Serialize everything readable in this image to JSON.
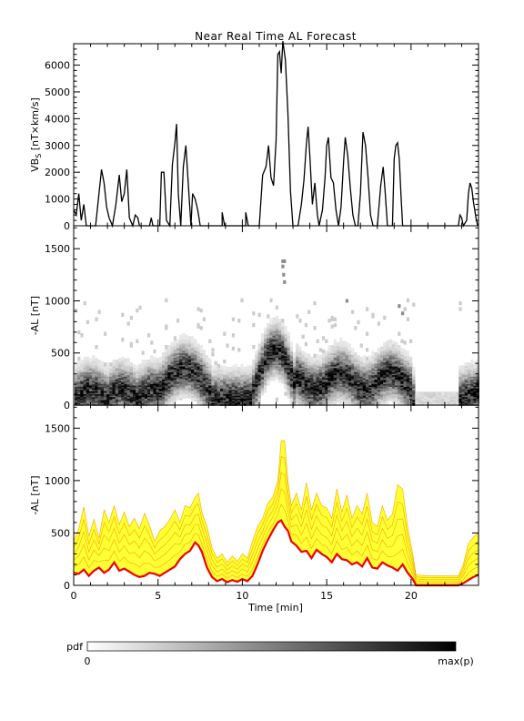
{
  "chart_data": {
    "title": "Near Real Time AL Forecast",
    "xlabel": "Time [min]",
    "xlim": [
      0,
      24
    ],
    "x_ticks": [
      0,
      5,
      10,
      15,
      20
    ],
    "panels": [
      {
        "type": "line",
        "ylabel": "VBs [nT×km/s]",
        "ylabel_main": "VB",
        "ylabel_sub": "S",
        "ylabel_rest": " [nT×km/s]",
        "ylim": [
          0,
          6800
        ],
        "y_ticks": [
          0,
          1000,
          2000,
          3000,
          4000,
          5000,
          6000
        ],
        "series": [
          {
            "color": "#000000",
            "points": [
              [
                0.0,
                600
              ],
              [
                0.15,
                400
              ],
              [
                0.3,
                1200
              ],
              [
                0.45,
                200
              ],
              [
                0.6,
                800
              ],
              [
                0.75,
                0
              ],
              [
                1.3,
                0
              ],
              [
                1.5,
                1200
              ],
              [
                1.65,
                2100
              ],
              [
                1.8,
                1600
              ],
              [
                1.95,
                700
              ],
              [
                2.1,
                300
              ],
              [
                2.3,
                0
              ],
              [
                2.5,
                800
              ],
              [
                2.7,
                1900
              ],
              [
                2.85,
                900
              ],
              [
                3.0,
                1200
              ],
              [
                3.15,
                2100
              ],
              [
                3.3,
                300
              ],
              [
                3.5,
                0
              ],
              [
                3.65,
                400
              ],
              [
                3.8,
                300
              ],
              [
                3.9,
                0
              ],
              [
                4.5,
                0
              ],
              [
                4.6,
                300
              ],
              [
                4.7,
                0
              ],
              [
                5.1,
                0
              ],
              [
                5.2,
                2000
              ],
              [
                5.35,
                2000
              ],
              [
                5.5,
                200
              ],
              [
                5.7,
                0
              ],
              [
                5.85,
                2300
              ],
              [
                6.0,
                3100
              ],
              [
                6.1,
                3800
              ],
              [
                6.2,
                1200
              ],
              [
                6.35,
                0
              ],
              [
                6.5,
                2200
              ],
              [
                6.65,
                3000
              ],
              [
                6.8,
                1500
              ],
              [
                6.95,
                0
              ],
              [
                7.05,
                1200
              ],
              [
                7.2,
                1000
              ],
              [
                7.35,
                600
              ],
              [
                7.5,
                0
              ],
              [
                8.8,
                0
              ],
              [
                8.8,
                500
              ],
              [
                8.95,
                0
              ],
              [
                10.2,
                0
              ],
              [
                10.2,
                500
              ],
              [
                10.35,
                0
              ],
              [
                11.0,
                0
              ],
              [
                11.2,
                1900
              ],
              [
                11.4,
                2200
              ],
              [
                11.55,
                3000
              ],
              [
                11.7,
                1800
              ],
              [
                11.85,
                1500
              ],
              [
                12.0,
                3200
              ],
              [
                12.1,
                6400
              ],
              [
                12.2,
                6500
              ],
              [
                12.3,
                5700
              ],
              [
                12.4,
                6900
              ],
              [
                12.55,
                6200
              ],
              [
                12.7,
                4200
              ],
              [
                12.85,
                1300
              ],
              [
                13.0,
                0
              ],
              [
                13.3,
                0
              ],
              [
                13.5,
                800
              ],
              [
                13.65,
                1700
              ],
              [
                13.8,
                3100
              ],
              [
                13.9,
                3700
              ],
              [
                14.0,
                2600
              ],
              [
                14.15,
                800
              ],
              [
                14.3,
                1600
              ],
              [
                14.45,
                400
              ],
              [
                14.55,
                0
              ],
              [
                14.75,
                600
              ],
              [
                14.9,
                1800
              ],
              [
                15.0,
                3000
              ],
              [
                15.1,
                3300
              ],
              [
                15.25,
                1800
              ],
              [
                15.4,
                1600
              ],
              [
                15.55,
                600
              ],
              [
                15.7,
                0
              ],
              [
                15.85,
                700
              ],
              [
                16.0,
                2400
              ],
              [
                16.1,
                3300
              ],
              [
                16.25,
                2600
              ],
              [
                16.4,
                1400
              ],
              [
                16.55,
                400
              ],
              [
                16.7,
                0
              ],
              [
                16.85,
                0
              ],
              [
                17.0,
                1200
              ],
              [
                17.15,
                3500
              ],
              [
                17.3,
                3000
              ],
              [
                17.45,
                1800
              ],
              [
                17.6,
                400
              ],
              [
                17.75,
                0
              ],
              [
                18.0,
                0
              ],
              [
                18.2,
                1500
              ],
              [
                18.35,
                2200
              ],
              [
                18.45,
                1400
              ],
              [
                18.6,
                0
              ],
              [
                18.9,
                0
              ],
              [
                19.0,
                2500
              ],
              [
                19.1,
                3000
              ],
              [
                19.2,
                3100
              ],
              [
                19.3,
                2500
              ],
              [
                19.4,
                1200
              ],
              [
                19.5,
                0
              ],
              [
                22.8,
                0
              ],
              [
                22.9,
                400
              ],
              [
                23.0,
                300
              ],
              [
                23.1,
                0
              ],
              [
                23.3,
                200
              ],
              [
                23.4,
                1200
              ],
              [
                23.5,
                1600
              ],
              [
                23.6,
                1400
              ],
              [
                23.7,
                900
              ],
              [
                23.85,
                300
              ],
              [
                23.95,
                0
              ]
            ]
          }
        ]
      },
      {
        "type": "heatmap",
        "ylabel": "-AL [nT]",
        "ylim": [
          0,
          1720
        ],
        "y_ticks": [
          0,
          500,
          1000,
          1500
        ],
        "colormap": [
          "#ffffff",
          "#000000"
        ]
      },
      {
        "type": "area",
        "ylabel": "-AL [nT]",
        "ylim": [
          0,
          1720
        ],
        "y_ticks": [
          0,
          500,
          1000,
          1500
        ],
        "band_color": "#ffff33",
        "envelope_color": "#f2a800",
        "median_color": "#ee0000",
        "median": [
          [
            0,
            120
          ],
          [
            0.3,
            110
          ],
          [
            0.6,
            150
          ],
          [
            0.9,
            90
          ],
          [
            1.2,
            140
          ],
          [
            1.5,
            170
          ],
          [
            1.8,
            120
          ],
          [
            2.1,
            150
          ],
          [
            2.4,
            220
          ],
          [
            2.7,
            140
          ],
          [
            3.0,
            160
          ],
          [
            3.3,
            130
          ],
          [
            3.6,
            100
          ],
          [
            3.9,
            80
          ],
          [
            4.2,
            90
          ],
          [
            4.5,
            120
          ],
          [
            4.8,
            110
          ],
          [
            5.1,
            90
          ],
          [
            5.4,
            120
          ],
          [
            5.7,
            150
          ],
          [
            6.0,
            180
          ],
          [
            6.3,
            250
          ],
          [
            6.6,
            300
          ],
          [
            6.9,
            330
          ],
          [
            7.2,
            410
          ],
          [
            7.4,
            380
          ],
          [
            7.6,
            320
          ],
          [
            7.9,
            170
          ],
          [
            8.2,
            80
          ],
          [
            8.5,
            40
          ],
          [
            8.8,
            60
          ],
          [
            9.1,
            30
          ],
          [
            9.4,
            50
          ],
          [
            9.7,
            35
          ],
          [
            10.0,
            60
          ],
          [
            10.3,
            40
          ],
          [
            10.6,
            90
          ],
          [
            10.9,
            200
          ],
          [
            11.2,
            330
          ],
          [
            11.5,
            430
          ],
          [
            11.8,
            520
          ],
          [
            12.1,
            600
          ],
          [
            12.3,
            620
          ],
          [
            12.5,
            560
          ],
          [
            12.7,
            520
          ],
          [
            12.9,
            420
          ],
          [
            13.2,
            380
          ],
          [
            13.5,
            320
          ],
          [
            13.8,
            330
          ],
          [
            14.1,
            260
          ],
          [
            14.4,
            340
          ],
          [
            14.7,
            300
          ],
          [
            15.0,
            270
          ],
          [
            15.3,
            220
          ],
          [
            15.6,
            300
          ],
          [
            15.9,
            250
          ],
          [
            16.2,
            240
          ],
          [
            16.5,
            200
          ],
          [
            16.8,
            220
          ],
          [
            17.1,
            180
          ],
          [
            17.4,
            260
          ],
          [
            17.7,
            170
          ],
          [
            18.0,
            160
          ],
          [
            18.3,
            220
          ],
          [
            18.6,
            190
          ],
          [
            18.9,
            170
          ],
          [
            19.2,
            140
          ],
          [
            19.5,
            200
          ],
          [
            19.8,
            120
          ],
          [
            20.1,
            60
          ],
          [
            20.3,
            0
          ],
          [
            21.0,
            0
          ],
          [
            22.8,
            0
          ],
          [
            23.1,
            20
          ],
          [
            23.4,
            50
          ],
          [
            23.7,
            80
          ],
          [
            24,
            100
          ]
        ],
        "upper": [
          [
            0,
            420
          ],
          [
            0.3,
            540
          ],
          [
            0.6,
            750
          ],
          [
            0.9,
            470
          ],
          [
            1.2,
            630
          ],
          [
            1.5,
            450
          ],
          [
            1.8,
            720
          ],
          [
            2.1,
            600
          ],
          [
            2.4,
            760
          ],
          [
            2.7,
            580
          ],
          [
            3.0,
            700
          ],
          [
            3.3,
            560
          ],
          [
            3.6,
            640
          ],
          [
            3.9,
            540
          ],
          [
            4.2,
            690
          ],
          [
            4.5,
            570
          ],
          [
            4.8,
            420
          ],
          [
            5.1,
            520
          ],
          [
            5.4,
            560
          ],
          [
            5.7,
            630
          ],
          [
            6.0,
            720
          ],
          [
            6.3,
            600
          ],
          [
            6.6,
            760
          ],
          [
            6.9,
            740
          ],
          [
            7.2,
            840
          ],
          [
            7.4,
            880
          ],
          [
            7.6,
            700
          ],
          [
            7.9,
            560
          ],
          [
            8.2,
            360
          ],
          [
            8.5,
            260
          ],
          [
            8.8,
            300
          ],
          [
            9.1,
            220
          ],
          [
            9.4,
            280
          ],
          [
            9.7,
            230
          ],
          [
            10.0,
            300
          ],
          [
            10.3,
            260
          ],
          [
            10.6,
            420
          ],
          [
            10.9,
            560
          ],
          [
            11.2,
            640
          ],
          [
            11.5,
            780
          ],
          [
            11.8,
            840
          ],
          [
            12.1,
            1000
          ],
          [
            12.3,
            1380
          ],
          [
            12.5,
            1380
          ],
          [
            12.7,
            1000
          ],
          [
            12.9,
            760
          ],
          [
            13.2,
            880
          ],
          [
            13.5,
            720
          ],
          [
            13.8,
            980
          ],
          [
            14.1,
            720
          ],
          [
            14.4,
            880
          ],
          [
            14.7,
            760
          ],
          [
            15.0,
            740
          ],
          [
            15.3,
            640
          ],
          [
            15.6,
            920
          ],
          [
            15.9,
            700
          ],
          [
            16.2,
            860
          ],
          [
            16.5,
            640
          ],
          [
            16.8,
            760
          ],
          [
            17.1,
            680
          ],
          [
            17.4,
            880
          ],
          [
            17.7,
            600
          ],
          [
            18.0,
            560
          ],
          [
            18.3,
            760
          ],
          [
            18.6,
            620
          ],
          [
            18.9,
            680
          ],
          [
            19.2,
            960
          ],
          [
            19.5,
            920
          ],
          [
            19.8,
            560
          ],
          [
            20.1,
            300
          ],
          [
            20.3,
            100
          ],
          [
            21.0,
            90
          ],
          [
            22.8,
            90
          ],
          [
            23.1,
            200
          ],
          [
            23.4,
            400
          ],
          [
            23.7,
            460
          ],
          [
            24,
            500
          ]
        ]
      }
    ],
    "colorbar": {
      "label": "pdf",
      "min_label": "0",
      "max_label": "max(p)"
    }
  }
}
